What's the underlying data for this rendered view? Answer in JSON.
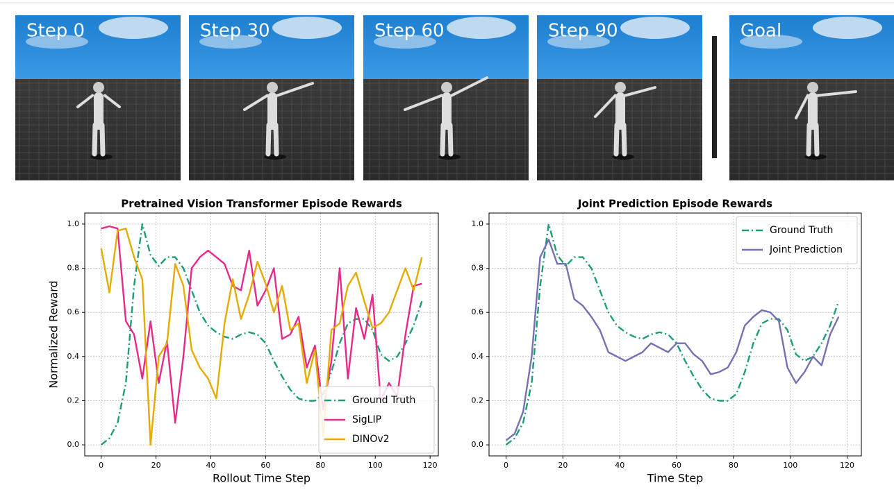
{
  "frames": [
    {
      "label": "Step 0"
    },
    {
      "label": "Step 30"
    },
    {
      "label": "Step 60"
    },
    {
      "label": "Step 90"
    },
    {
      "label": "Goal"
    }
  ],
  "chart_data": [
    {
      "type": "line",
      "title": "Pretrained Vision Transformer Episode Rewards",
      "xlabel": "Rollout Time Step",
      "ylabel": "Normalized Reward",
      "x": [
        0,
        3,
        6,
        9,
        12,
        15,
        18,
        21,
        24,
        27,
        30,
        33,
        36,
        39,
        42,
        45,
        48,
        51,
        54,
        57,
        60,
        63,
        66,
        69,
        72,
        75,
        78,
        81,
        84,
        87,
        90,
        93,
        96,
        99,
        102,
        105,
        108,
        111,
        114,
        117
      ],
      "series": [
        {
          "name": "Ground Truth",
          "color": "#1b9e77",
          "linestyle": "dash-dot",
          "values": [
            0.0,
            0.03,
            0.1,
            0.28,
            0.72,
            1.0,
            0.86,
            0.81,
            0.85,
            0.85,
            0.8,
            0.7,
            0.6,
            0.54,
            0.51,
            0.49,
            0.48,
            0.5,
            0.51,
            0.5,
            0.46,
            0.38,
            0.31,
            0.25,
            0.21,
            0.2,
            0.2,
            0.23,
            0.33,
            0.46,
            0.55,
            0.57,
            0.57,
            0.52,
            0.41,
            0.38,
            0.4,
            0.46,
            0.54,
            0.65
          ]
        },
        {
          "name": "SigLIP",
          "color": "#e7298a",
          "linestyle": "solid",
          "values": [
            0.98,
            0.99,
            0.98,
            0.56,
            0.5,
            0.3,
            0.56,
            0.28,
            0.47,
            0.1,
            0.4,
            0.8,
            0.85,
            0.88,
            0.85,
            0.82,
            0.72,
            0.7,
            0.88,
            0.63,
            0.7,
            0.8,
            0.48,
            0.5,
            0.58,
            0.35,
            0.45,
            0.16,
            0.38,
            0.8,
            0.3,
            0.62,
            0.48,
            0.68,
            0.2,
            0.28,
            0.22,
            0.5,
            0.72,
            0.73
          ]
        },
        {
          "name": "DINOv2",
          "color": "#e6ab02",
          "linestyle": "solid",
          "values": [
            0.89,
            0.69,
            0.97,
            0.98,
            0.85,
            0.75,
            0.0,
            0.4,
            0.46,
            0.82,
            0.72,
            0.43,
            0.35,
            0.3,
            0.21,
            0.55,
            0.75,
            0.57,
            0.68,
            0.83,
            0.73,
            0.6,
            0.72,
            0.52,
            0.55,
            0.28,
            0.43,
            0.04,
            0.52,
            0.55,
            0.72,
            0.78,
            0.65,
            0.53,
            0.55,
            0.6,
            0.7,
            0.8,
            0.7,
            0.85
          ]
        }
      ],
      "xlim": [
        -6,
        123
      ],
      "ylim": [
        -0.05,
        1.05
      ],
      "xticks": [
        0,
        20,
        40,
        60,
        80,
        100,
        120
      ],
      "yticks": [
        {
          "value": 0,
          "label": "0.0"
        },
        {
          "value": 0.2,
          "label": "0.2"
        },
        {
          "value": 0.4,
          "label": "0.4"
        },
        {
          "value": 0.6,
          "label": "0.6"
        },
        {
          "value": 0.8,
          "label": "0.8"
        },
        {
          "value": 1,
          "label": "1.0"
        }
      ],
      "grid": true,
      "legend": "lower right"
    },
    {
      "type": "line",
      "title": "Joint Prediction Episode Rewards",
      "xlabel": "Time Step",
      "x": [
        0,
        3,
        6,
        9,
        12,
        15,
        18,
        21,
        24,
        27,
        30,
        33,
        36,
        39,
        42,
        45,
        48,
        51,
        54,
        57,
        60,
        63,
        66,
        69,
        72,
        75,
        78,
        81,
        84,
        87,
        90,
        93,
        96,
        99,
        102,
        105,
        108,
        111,
        114,
        117
      ],
      "series": [
        {
          "name": "Ground Truth",
          "color": "#1b9e77",
          "linestyle": "dash-dot",
          "values": [
            0.0,
            0.03,
            0.1,
            0.28,
            0.72,
            1.0,
            0.86,
            0.81,
            0.85,
            0.85,
            0.8,
            0.7,
            0.6,
            0.54,
            0.51,
            0.49,
            0.48,
            0.5,
            0.51,
            0.5,
            0.46,
            0.38,
            0.31,
            0.25,
            0.21,
            0.2,
            0.2,
            0.23,
            0.33,
            0.46,
            0.55,
            0.57,
            0.57,
            0.52,
            0.41,
            0.38,
            0.4,
            0.46,
            0.54,
            0.65
          ]
        },
        {
          "name": "Joint Prediction",
          "color": "#7570b3",
          "linestyle": "solid",
          "values": [
            0.02,
            0.05,
            0.15,
            0.4,
            0.85,
            0.93,
            0.82,
            0.82,
            0.66,
            0.63,
            0.58,
            0.52,
            0.42,
            0.4,
            0.38,
            0.4,
            0.42,
            0.46,
            0.44,
            0.42,
            0.46,
            0.46,
            0.41,
            0.38,
            0.32,
            0.33,
            0.35,
            0.42,
            0.54,
            0.58,
            0.61,
            0.6,
            0.56,
            0.35,
            0.28,
            0.33,
            0.4,
            0.36,
            0.5,
            0.58
          ]
        }
      ],
      "xlim": [
        -6,
        125
      ],
      "ylim": [
        -0.05,
        1.05
      ],
      "xticks": [
        0,
        20,
        40,
        60,
        80,
        100,
        120
      ],
      "yticks": [
        {
          "value": 0,
          "label": "0.0"
        },
        {
          "value": 0.2,
          "label": "0.2"
        },
        {
          "value": 0.4,
          "label": "0.4"
        },
        {
          "value": 0.6,
          "label": "0.6"
        },
        {
          "value": 0.8,
          "label": "0.8"
        },
        {
          "value": 1,
          "label": "1.0"
        }
      ],
      "grid": true,
      "legend": "upper right"
    }
  ]
}
